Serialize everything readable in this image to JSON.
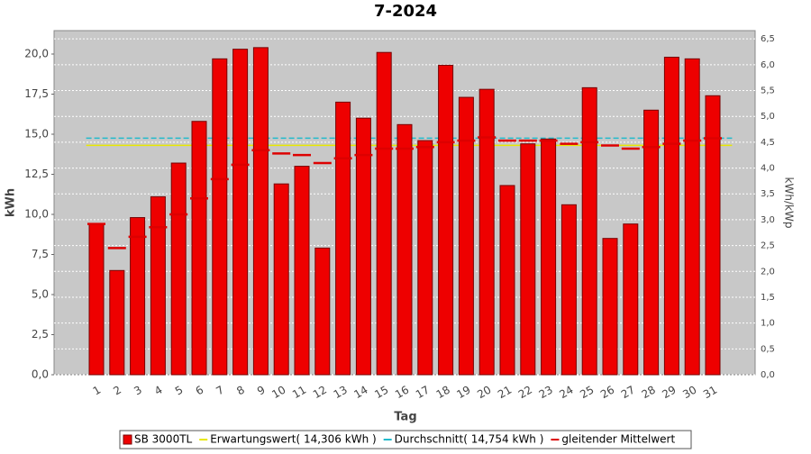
{
  "chart_data": {
    "type": "bar",
    "title": "7-2024",
    "x_label": "Tag",
    "y_label": "kWh",
    "y2_label": "kWh/kWp",
    "categories": [
      "1",
      "2",
      "3",
      "4",
      "5",
      "6",
      "7",
      "8",
      "9",
      "10",
      "11",
      "12",
      "13",
      "14",
      "15",
      "16",
      "17",
      "18",
      "19",
      "20",
      "21",
      "22",
      "23",
      "24",
      "25",
      "26",
      "27",
      "28",
      "29",
      "30",
      "31"
    ],
    "series": [
      {
        "name": "SB 3000TL",
        "color": "#ee0000",
        "mark": "bar",
        "values": [
          9.4,
          6.5,
          9.8,
          11.1,
          13.2,
          15.8,
          19.7,
          20.3,
          20.4,
          11.9,
          13.0,
          7.9,
          17.0,
          16.0,
          20.1,
          15.6,
          14.6,
          19.3,
          17.3,
          17.8,
          11.8,
          14.4,
          14.7,
          10.6,
          17.9,
          8.5,
          9.4,
          16.5,
          19.8,
          19.7,
          17.4
        ]
      },
      {
        "name": "gleitender Mittelwert",
        "color": "#dd0000",
        "mark": "dash",
        "values": [
          9.4,
          7.9,
          8.6,
          9.2,
          10.0,
          11.0,
          12.2,
          13.1,
          14.0,
          13.8,
          13.7,
          13.2,
          13.5,
          13.7,
          14.1,
          14.1,
          14.2,
          14.5,
          14.6,
          14.8,
          14.6,
          14.6,
          14.6,
          14.4,
          14.5,
          14.3,
          14.1,
          14.2,
          14.4,
          14.6,
          14.75
        ]
      }
    ],
    "reference_lines": [
      {
        "name": "Erwartungswert( 14,306 kWh )",
        "value": 14.306,
        "color": "#e8e800"
      },
      {
        "name": "Durchschnitt( 14,754 kWh )",
        "value": 14.754,
        "color": "#22bbcc"
      }
    ],
    "ylim": [
      0,
      21.46
    ],
    "yticks": [
      {
        "value": 0,
        "label": "0,0"
      },
      {
        "value": 2.5,
        "label": "2,5"
      },
      {
        "value": 5,
        "label": "5,0"
      },
      {
        "value": 7.5,
        "label": "7,5"
      },
      {
        "value": 10,
        "label": "10,0"
      },
      {
        "value": 12.5,
        "label": "12,5"
      },
      {
        "value": 15,
        "label": "15,0"
      },
      {
        "value": 17.5,
        "label": "17,5"
      },
      {
        "value": 20,
        "label": "20,0"
      }
    ],
    "y2lim": [
      0,
      6.66
    ],
    "y2ticks": [
      {
        "value": 0,
        "label": "0,0"
      },
      {
        "value": 0.5,
        "label": "0,5"
      },
      {
        "value": 1,
        "label": "1,0"
      },
      {
        "value": 1.5,
        "label": "1,5"
      },
      {
        "value": 2,
        "label": "2,0"
      },
      {
        "value": 2.5,
        "label": "2,5"
      },
      {
        "value": 3,
        "label": "3,0"
      },
      {
        "value": 3.5,
        "label": "3,5"
      },
      {
        "value": 4,
        "label": "4,0"
      },
      {
        "value": 4.5,
        "label": "4,5"
      },
      {
        "value": 5,
        "label": "5,0"
      },
      {
        "value": 5.5,
        "label": "5,5"
      },
      {
        "value": 6,
        "label": "6,0"
      },
      {
        "value": 6.5,
        "label": "6,5"
      }
    ],
    "grid": true
  }
}
